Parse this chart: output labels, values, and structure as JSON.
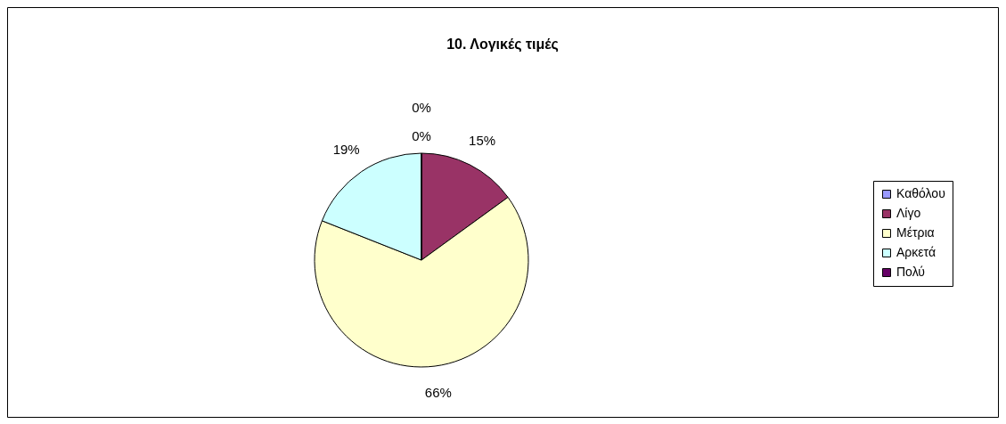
{
  "chart_data": {
    "type": "pie",
    "title": "10. Λογικές τιμές",
    "categories": [
      "Καθόλου",
      "Λίγο",
      "Μέτρια",
      "Αρκετά",
      "Πολύ"
    ],
    "values": [
      0,
      15,
      66,
      19,
      0
    ],
    "colors": [
      "#9999ff",
      "#993366",
      "#ffffcc",
      "#ccffff",
      "#660066"
    ],
    "value_labels": [
      "0%",
      "15%",
      "66%",
      "19%",
      "0%"
    ],
    "legend": "right"
  }
}
